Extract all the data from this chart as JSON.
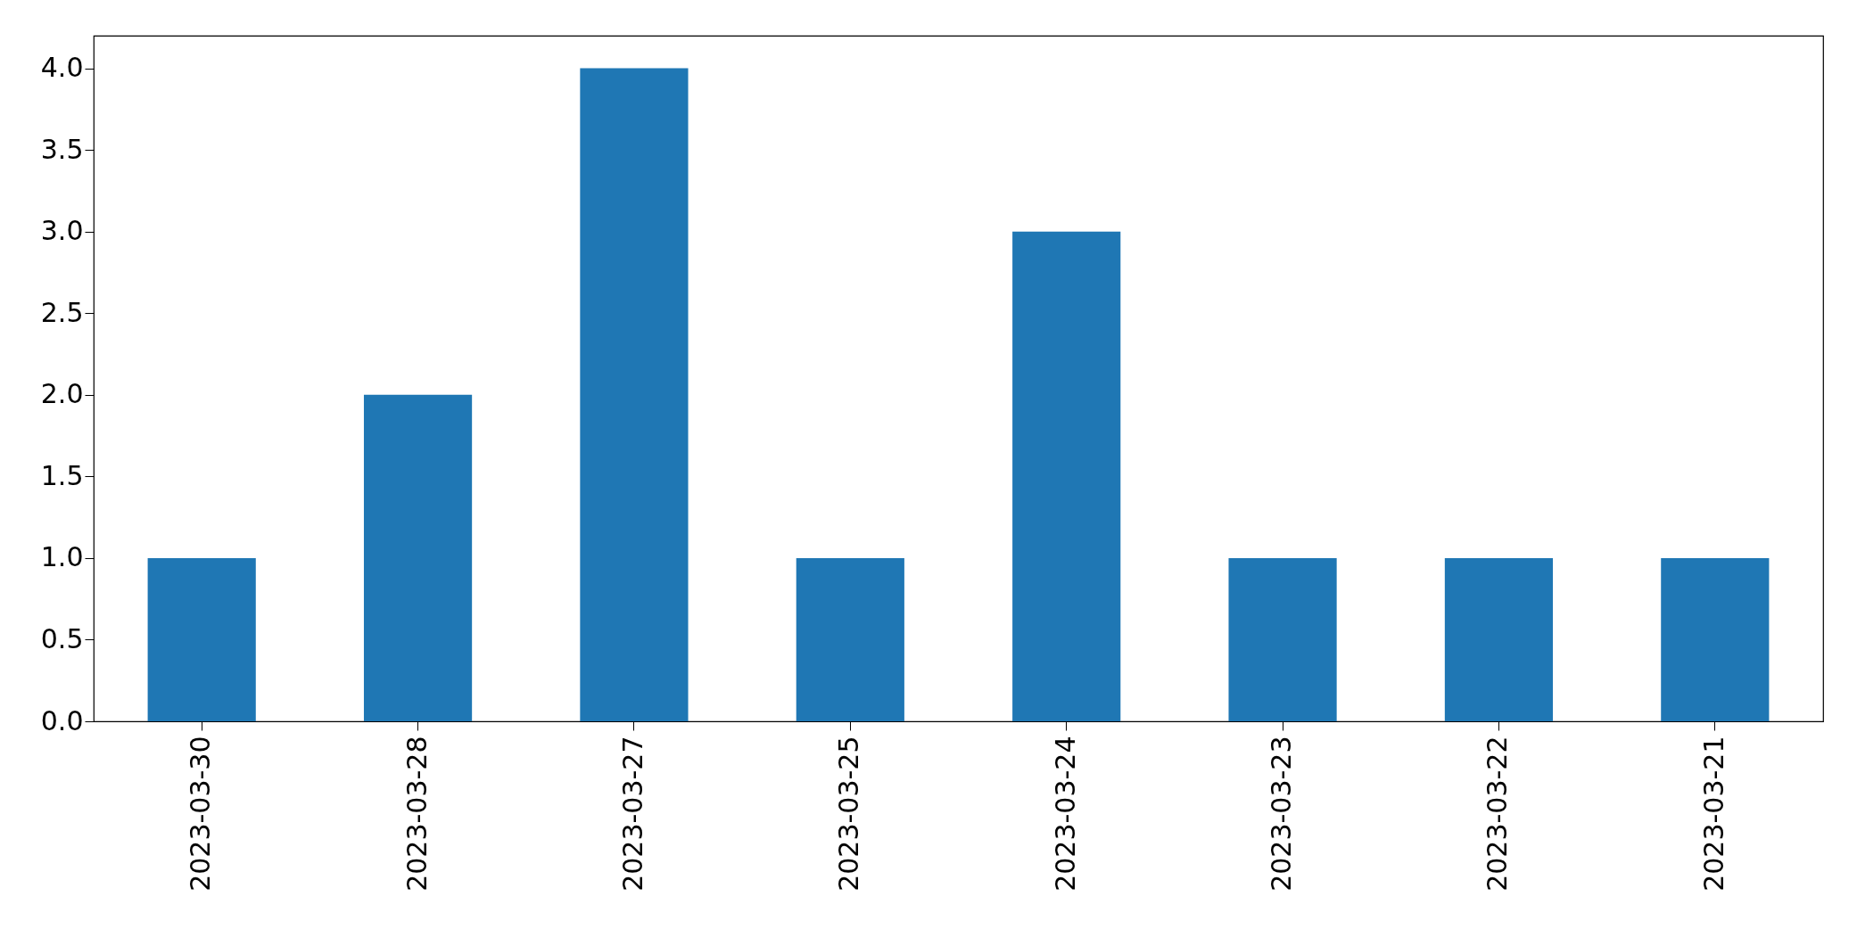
{
  "chart_data": {
    "type": "bar",
    "categories": [
      "2023-03-30",
      "2023-03-28",
      "2023-03-27",
      "2023-03-25",
      "2023-03-24",
      "2023-03-23",
      "2023-03-22",
      "2023-03-21"
    ],
    "values": [
      1,
      2,
      4,
      1,
      3,
      1,
      1,
      1
    ],
    "color": "#1f77b4",
    "ylim": [
      0,
      4.2
    ],
    "yticks": [
      {
        "value": 0,
        "label": "0.0"
      },
      0.5,
      {
        "value": 1,
        "label": "1.0"
      },
      1.5,
      {
        "value": 2,
        "label": "2.0"
      },
      2.5,
      {
        "value": 3,
        "label": "3.0"
      },
      3.5,
      {
        "value": 4,
        "label": "4.0"
      }
    ],
    "grid": false
  }
}
